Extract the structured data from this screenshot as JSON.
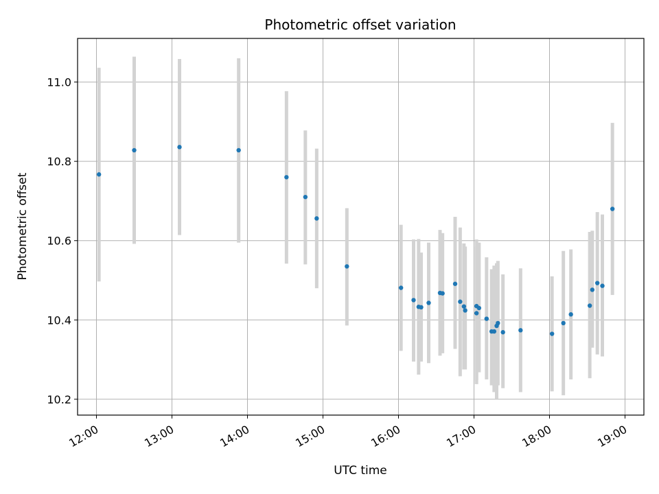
{
  "chart_data": {
    "type": "scatter",
    "title": "Photometric offset variation",
    "xlabel": "UTC time",
    "ylabel": "Photometric offset",
    "x_axis_type": "time",
    "xlim": [
      "11:45",
      "19:15"
    ],
    "ylim": [
      10.16,
      11.11
    ],
    "x_ticks": [
      "12:00",
      "13:00",
      "14:00",
      "15:00",
      "16:00",
      "17:00",
      "18:00",
      "19:00"
    ],
    "y_ticks": [
      10.2,
      10.4,
      10.6,
      10.8,
      11.0
    ],
    "y_tick_labels": [
      "10.2",
      "10.4",
      "10.6",
      "10.8",
      "11.0"
    ],
    "grid": true,
    "legend": "none",
    "colors": {
      "points": "#1f77b4",
      "errorbars": "#d3d3d3",
      "grid": "#b0b0b0"
    },
    "series": [
      {
        "points": [
          {
            "x": "12:02",
            "y": 10.767,
            "lo": 10.497,
            "hi": 11.036
          },
          {
            "x": "12:30",
            "y": 10.828,
            "lo": 10.592,
            "hi": 11.064
          },
          {
            "x": "13:06",
            "y": 10.836,
            "lo": 10.614,
            "hi": 11.058
          },
          {
            "x": "13:53",
            "y": 10.828,
            "lo": 10.595,
            "hi": 11.06
          },
          {
            "x": "14:31",
            "y": 10.76,
            "lo": 10.542,
            "hi": 10.977
          },
          {
            "x": "14:46",
            "y": 10.71,
            "lo": 10.54,
            "hi": 10.878
          },
          {
            "x": "14:55",
            "y": 10.656,
            "lo": 10.48,
            "hi": 10.832
          },
          {
            "x": "15:19",
            "y": 10.535,
            "lo": 10.386,
            "hi": 10.682
          },
          {
            "x": "16:02",
            "y": 10.481,
            "lo": 10.322,
            "hi": 10.64
          },
          {
            "x": "16:12",
            "y": 10.45,
            "lo": 10.295,
            "hi": 10.603
          },
          {
            "x": "16:16",
            "y": 10.433,
            "lo": 10.262,
            "hi": 10.604
          },
          {
            "x": "16:18",
            "y": 10.432,
            "lo": 10.295,
            "hi": 10.57
          },
          {
            "x": "16:24",
            "y": 10.443,
            "lo": 10.291,
            "hi": 10.595
          },
          {
            "x": "16:33",
            "y": 10.468,
            "lo": 10.31,
            "hi": 10.627
          },
          {
            "x": "16:35",
            "y": 10.467,
            "lo": 10.316,
            "hi": 10.619
          },
          {
            "x": "16:45",
            "y": 10.491,
            "lo": 10.327,
            "hi": 10.66
          },
          {
            "x": "16:49",
            "y": 10.446,
            "lo": 10.258,
            "hi": 10.633
          },
          {
            "x": "16:52",
            "y": 10.434,
            "lo": 10.275,
            "hi": 10.593
          },
          {
            "x": "16:53",
            "y": 10.424,
            "lo": 10.275,
            "hi": 10.585
          },
          {
            "x": "17:02",
            "y": 10.435,
            "lo": 10.238,
            "hi": 10.603
          },
          {
            "x": "17:02",
            "y": 10.417,
            "lo": 10.248,
            "hi": 10.585
          },
          {
            "x": "17:04",
            "y": 10.43,
            "lo": 10.268,
            "hi": 10.595
          },
          {
            "x": "17:10",
            "y": 10.403,
            "lo": 10.25,
            "hi": 10.558
          },
          {
            "x": "17:14",
            "y": 10.371,
            "lo": 10.235,
            "hi": 10.528
          },
          {
            "x": "17:16",
            "y": 10.371,
            "lo": 10.218,
            "hi": 10.537
          },
          {
            "x": "17:18",
            "y": 10.385,
            "lo": 10.2,
            "hi": 10.543
          },
          {
            "x": "17:19",
            "y": 10.392,
            "lo": 10.235,
            "hi": 10.549
          },
          {
            "x": "17:23",
            "y": 10.369,
            "lo": 10.228,
            "hi": 10.515
          },
          {
            "x": "17:37",
            "y": 10.374,
            "lo": 10.218,
            "hi": 10.53
          },
          {
            "x": "18:02",
            "y": 10.365,
            "lo": 10.22,
            "hi": 10.51
          },
          {
            "x": "18:11",
            "y": 10.392,
            "lo": 10.21,
            "hi": 10.574
          },
          {
            "x": "18:17",
            "y": 10.414,
            "lo": 10.25,
            "hi": 10.578
          },
          {
            "x": "18:32",
            "y": 10.436,
            "lo": 10.253,
            "hi": 10.622
          },
          {
            "x": "18:34",
            "y": 10.476,
            "lo": 10.33,
            "hi": 10.625
          },
          {
            "x": "18:38",
            "y": 10.493,
            "lo": 10.313,
            "hi": 10.672
          },
          {
            "x": "18:42",
            "y": 10.486,
            "lo": 10.308,
            "hi": 10.666
          },
          {
            "x": "18:50",
            "y": 10.68,
            "lo": 10.463,
            "hi": 10.897
          }
        ]
      }
    ]
  }
}
